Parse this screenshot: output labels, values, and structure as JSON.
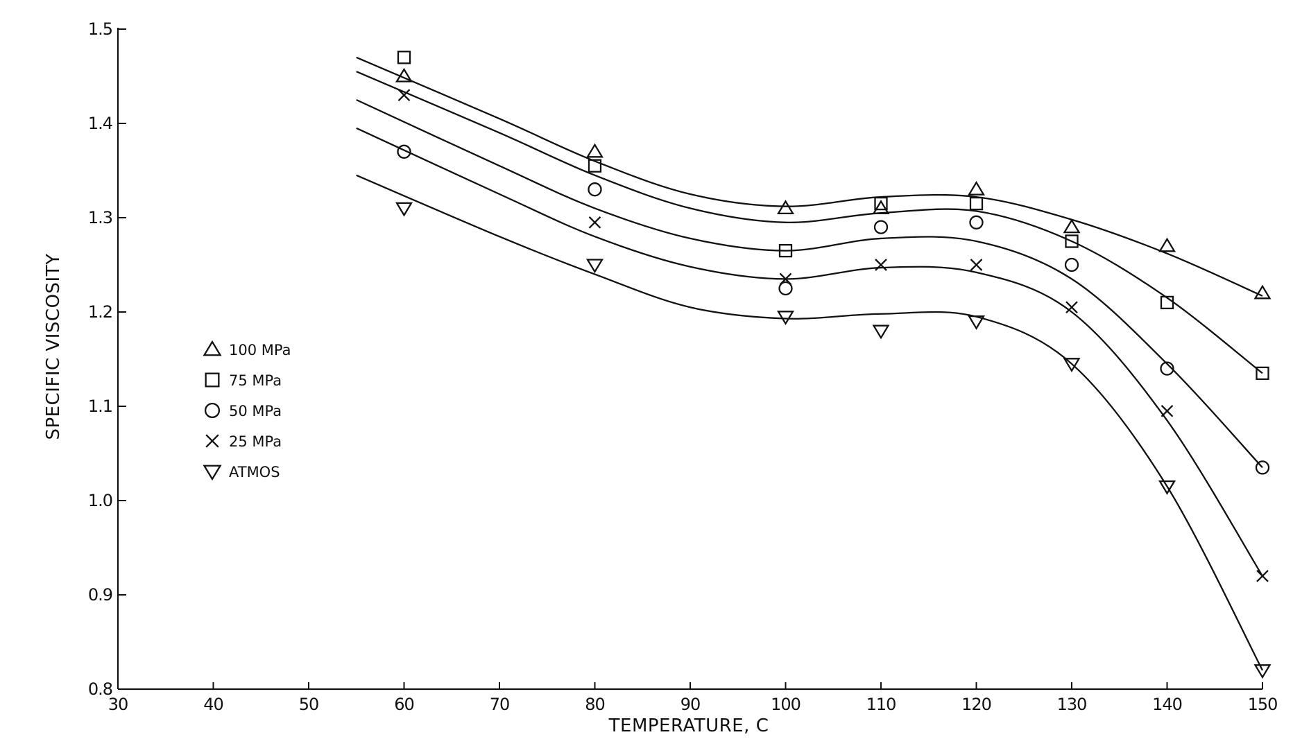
{
  "chart_data": {
    "type": "line",
    "title": "",
    "xlabel": "TEMPERATURE,  C",
    "ylabel": "SPECIFIC VISCOSITY",
    "xlim": [
      30,
      150
    ],
    "ylim": [
      0.8,
      1.5
    ],
    "x_ticks": [
      30,
      40,
      50,
      60,
      70,
      80,
      90,
      100,
      110,
      120,
      130,
      140,
      150
    ],
    "x_tick_labels": [
      "30",
      "40",
      "50",
      "60",
      "70",
      "80",
      "90",
      "100",
      "110",
      "120",
      "130",
      "140",
      "150"
    ],
    "y_ticks": [
      0.8,
      0.9,
      1.0,
      1.1,
      1.2,
      1.3,
      1.4,
      1.5
    ],
    "y_tick_labels": [
      "0.8",
      "0.9",
      "1.0",
      "1.1",
      "1.2",
      "1.3",
      "1.4",
      "1.5"
    ],
    "grid": false,
    "legend_position": "left-middle",
    "series": [
      {
        "name": "100 MPa",
        "marker": "triangle-up",
        "points": [
          [
            60,
            1.45
          ],
          [
            80,
            1.37
          ],
          [
            100,
            1.31
          ],
          [
            110,
            1.31
          ],
          [
            120,
            1.33
          ],
          [
            130,
            1.29
          ],
          [
            140,
            1.27
          ],
          [
            150,
            1.22
          ]
        ],
        "curve": [
          [
            55,
            1.47
          ],
          [
            70,
            1.405
          ],
          [
            80,
            1.36
          ],
          [
            90,
            1.325
          ],
          [
            100,
            1.312
          ],
          [
            110,
            1.322
          ],
          [
            120,
            1.322
          ],
          [
            130,
            1.298
          ],
          [
            140,
            1.262
          ],
          [
            150,
            1.217
          ]
        ]
      },
      {
        "name": "75 MPa",
        "marker": "square",
        "points": [
          [
            60,
            1.47
          ],
          [
            80,
            1.355
          ],
          [
            100,
            1.265
          ],
          [
            110,
            1.315
          ],
          [
            120,
            1.315
          ],
          [
            130,
            1.275
          ],
          [
            140,
            1.21
          ],
          [
            150,
            1.135
          ]
        ],
        "curve": [
          [
            55,
            1.455
          ],
          [
            70,
            1.39
          ],
          [
            80,
            1.345
          ],
          [
            90,
            1.31
          ],
          [
            100,
            1.295
          ],
          [
            110,
            1.305
          ],
          [
            120,
            1.307
          ],
          [
            130,
            1.275
          ],
          [
            140,
            1.215
          ],
          [
            150,
            1.135
          ]
        ]
      },
      {
        "name": "50 MPa",
        "marker": "circle",
        "points": [
          [
            60,
            1.37
          ],
          [
            80,
            1.33
          ],
          [
            100,
            1.225
          ],
          [
            110,
            1.29
          ],
          [
            120,
            1.295
          ],
          [
            130,
            1.25
          ],
          [
            140,
            1.14
          ],
          [
            150,
            1.035
          ]
        ],
        "curve": [
          [
            55,
            1.425
          ],
          [
            70,
            1.355
          ],
          [
            80,
            1.31
          ],
          [
            90,
            1.278
          ],
          [
            100,
            1.265
          ],
          [
            110,
            1.278
          ],
          [
            120,
            1.275
          ],
          [
            130,
            1.235
          ],
          [
            140,
            1.145
          ],
          [
            150,
            1.035
          ]
        ]
      },
      {
        "name": "25 MPa",
        "marker": "x",
        "points": [
          [
            60,
            1.43
          ],
          [
            80,
            1.295
          ],
          [
            100,
            1.235
          ],
          [
            110,
            1.25
          ],
          [
            120,
            1.25
          ],
          [
            130,
            1.205
          ],
          [
            140,
            1.095
          ],
          [
            150,
            0.92
          ]
        ],
        "curve": [
          [
            55,
            1.395
          ],
          [
            70,
            1.325
          ],
          [
            80,
            1.28
          ],
          [
            90,
            1.248
          ],
          [
            100,
            1.235
          ],
          [
            110,
            1.247
          ],
          [
            120,
            1.242
          ],
          [
            130,
            1.2
          ],
          [
            140,
            1.085
          ],
          [
            150,
            0.92
          ]
        ]
      },
      {
        "name": "ATMOS",
        "marker": "triangle-down",
        "points": [
          [
            60,
            1.31
          ],
          [
            80,
            1.25
          ],
          [
            100,
            1.195
          ],
          [
            110,
            1.18
          ],
          [
            120,
            1.19
          ],
          [
            130,
            1.145
          ],
          [
            140,
            1.015
          ],
          [
            150,
            0.82
          ]
        ],
        "curve": [
          [
            55,
            1.345
          ],
          [
            70,
            1.28
          ],
          [
            80,
            1.24
          ],
          [
            90,
            1.205
          ],
          [
            100,
            1.193
          ],
          [
            110,
            1.198
          ],
          [
            120,
            1.195
          ],
          [
            130,
            1.145
          ],
          [
            140,
            1.015
          ],
          [
            150,
            0.82
          ]
        ]
      }
    ]
  }
}
